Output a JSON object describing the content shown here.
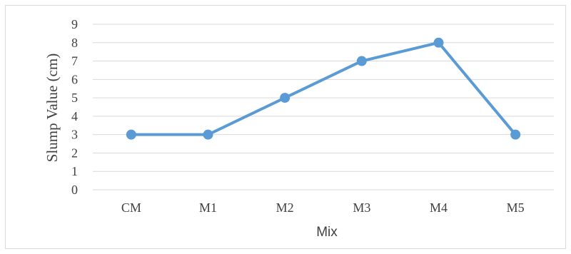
{
  "chart_data": {
    "type": "line",
    "title": "",
    "xlabel": "Mix",
    "ylabel": "Slump Value (cm)",
    "categories": [
      "CM",
      "M1",
      "M2",
      "M3",
      "M4",
      "M5"
    ],
    "series": [
      {
        "values": [
          3,
          3,
          5,
          7,
          8,
          3
        ]
      }
    ],
    "ylim": [
      0,
      9
    ],
    "yticks": [
      0,
      1,
      2,
      3,
      4,
      5,
      6,
      7,
      8,
      9
    ],
    "grid": "horizontal",
    "line_color": "#5b9bd5",
    "grid_color": "#d9d9d9",
    "text_color": "#404040"
  }
}
